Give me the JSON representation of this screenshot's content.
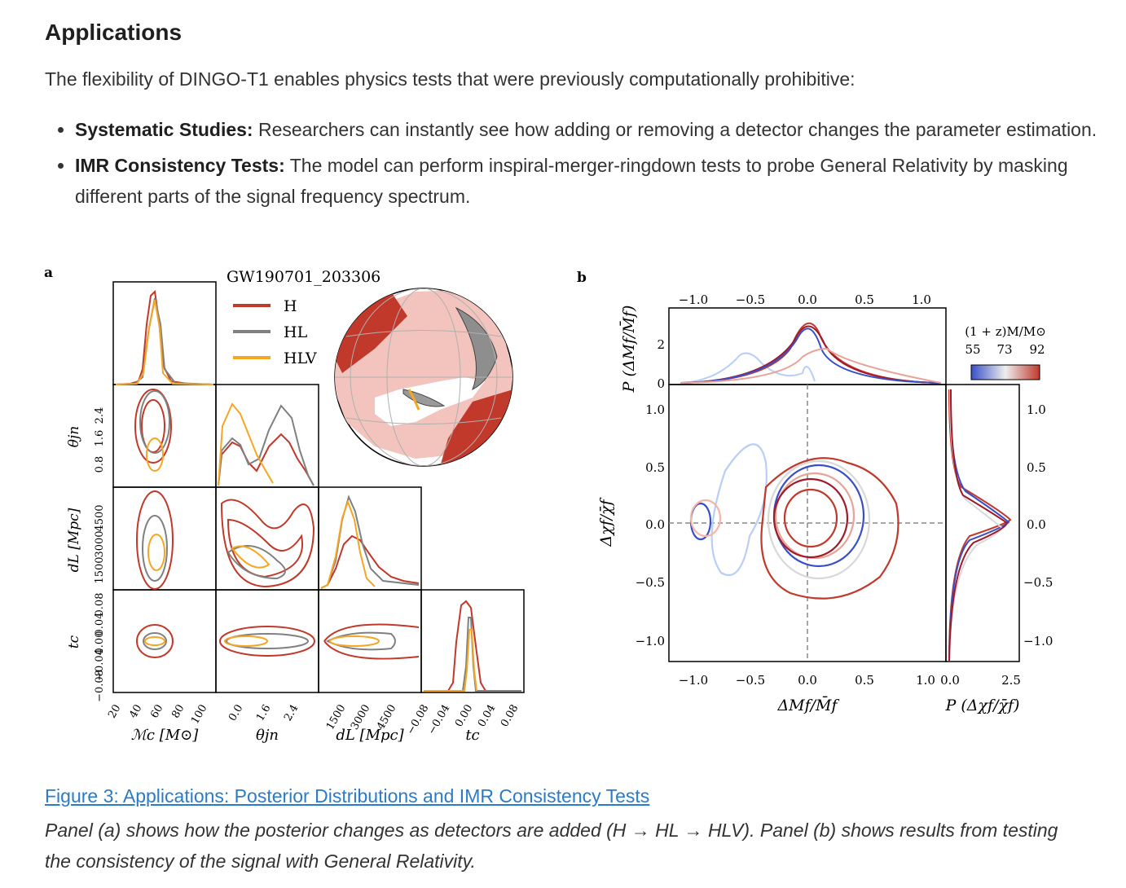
{
  "section": {
    "title": "Applications",
    "intro": "The flexibility of DINGO-T1 enables physics tests that were previously computationally prohibitive:",
    "bullets": [
      {
        "label": "Systematic Studies:",
        "text": " Researchers can instantly see how adding or removing a detector changes the parameter estimation."
      },
      {
        "label": "IMR Consistency Tests:",
        "text": " The model can perform inspiral-merger-ringdown tests to probe General Relativity by masking different parts of the signal frequency spectrum."
      }
    ]
  },
  "figure": {
    "caption_title": "Figure 3: Applications: Posterior Distributions and IMR Consistency Tests",
    "caption_text": "Panel (a) shows how the posterior changes as detectors are added (H → HL → HLV). Panel (b) shows results from testing the consistency of the signal with General Relativity."
  },
  "colors": {
    "H": "#c0392b",
    "HL": "#7f8080",
    "HLV": "#f5a623",
    "grid": "#000000",
    "dash": "#888888"
  },
  "chart_data": [
    {
      "type": "corner",
      "panel_label": "a",
      "title": "GW190701_203306",
      "legend": [
        "H",
        "HL",
        "HLV"
      ],
      "parameters": [
        {
          "label": "ℳc [M⊙]",
          "ticks": [
            "20",
            "40",
            "60",
            "80",
            "100"
          ]
        },
        {
          "label": "θjn",
          "ticks": [
            "0.8",
            "1.6",
            "2.4"
          ]
        },
        {
          "label": "dL [Mpc]",
          "ticks": [
            "1500",
            "3000",
            "4500"
          ]
        },
        {
          "label": "tc",
          "ticks": [
            "−0.08",
            "−0.04",
            "0.00",
            "0.04",
            "0.08"
          ]
        }
      ],
      "ylabels": [
        {
          "label": "θjn",
          "ticks": [
            "2.4",
            "1.6",
            "0.8"
          ]
        },
        {
          "label": "dL [Mpc]",
          "ticks": [
            "4500",
            "3000",
            "1500"
          ]
        },
        {
          "label": "tc",
          "ticks": [
            "0.08",
            "0.04",
            "0.00",
            "−0.04",
            "−0.08"
          ]
        }
      ]
    },
    {
      "type": "scatter",
      "panel_label": "b",
      "xlabel": "ΔMf/M̄f",
      "ylabel": "Δχf/χ̄f",
      "top_ylabel": "P (ΔMf/M̄f)",
      "right_xlabel": "P (Δχf/χ̄f)",
      "x_ticks": [
        "−1.0",
        "−0.5",
        "0.0",
        "0.5",
        "1.0"
      ],
      "y_ticks": [
        "1.0",
        "0.5",
        "0.0",
        "−0.5",
        "−1.0"
      ],
      "top_y_ticks": [
        "2",
        "0"
      ],
      "right_x_ticks": [
        "0.0",
        "2.5"
      ],
      "colorbar": {
        "label": "(1 + z)M/M⊙",
        "ticks": [
          "55",
          "73",
          "92"
        ],
        "range": [
          55,
          92
        ]
      }
    }
  ]
}
